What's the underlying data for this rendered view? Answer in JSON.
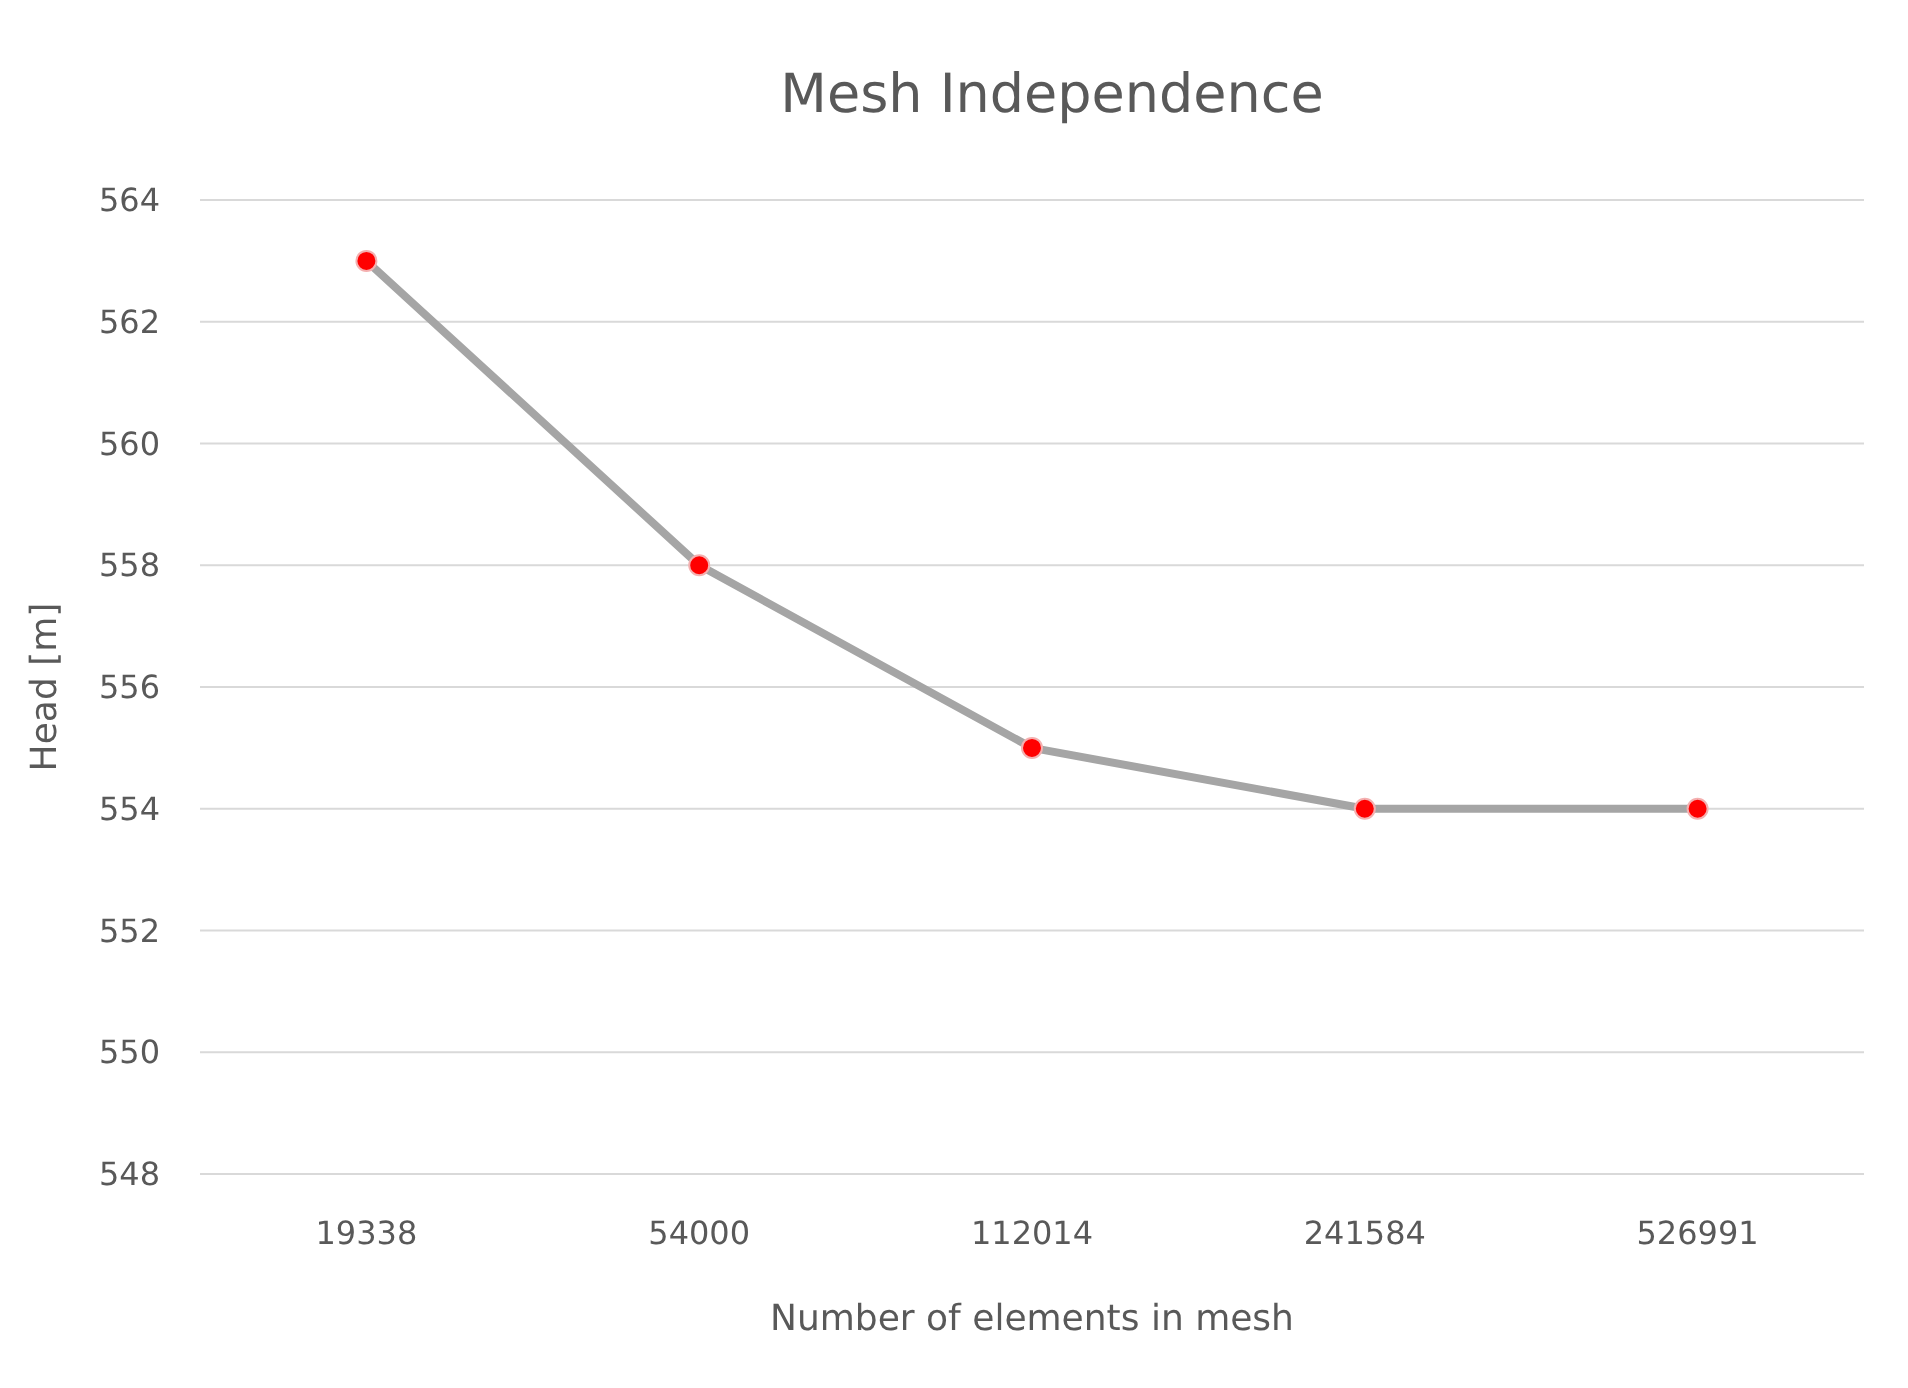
{
  "chart_data": {
    "type": "line",
    "title": "Mesh Independence",
    "xlabel": "Number of elements in mesh",
    "ylabel": "Head [m]",
    "categories": [
      "19338",
      "54000",
      "112014",
      "241584",
      "526991"
    ],
    "series": [
      {
        "color": "#a5a5a5",
        "values": [
          563,
          558,
          555,
          554,
          554
        ]
      }
    ],
    "ylim": [
      548,
      564
    ],
    "yticks": [
      548,
      550,
      552,
      554,
      556,
      558,
      560,
      562,
      564
    ],
    "grid": "y",
    "marker": "circle",
    "line_style": "solid"
  }
}
